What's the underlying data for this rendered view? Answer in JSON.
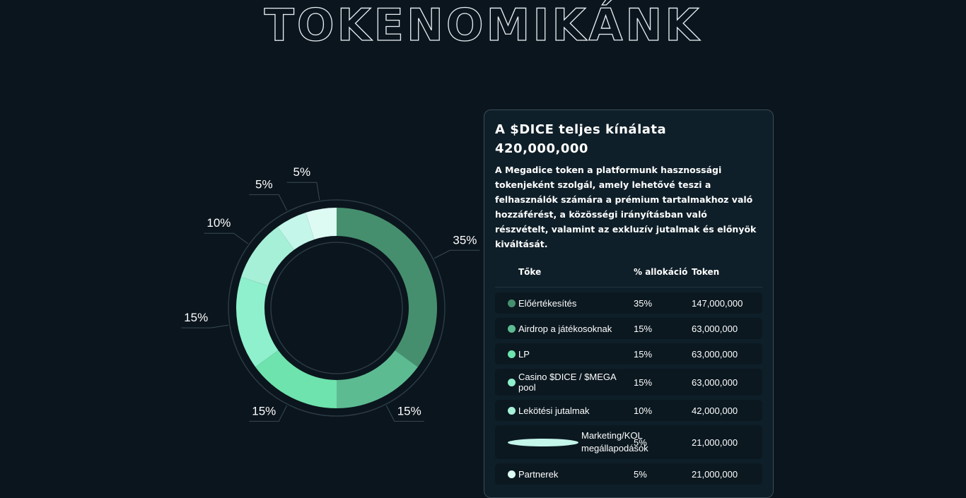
{
  "header": {
    "title": "TOKENOMIKÁNK"
  },
  "chart_data": {
    "type": "pie",
    "categories": [
      "Előértékesítés",
      "Airdrop a játékosoknak",
      "LP",
      "Casino $DICE / $MEGA pool",
      "Lekötési jutalmak",
      "Marketing/KOL megállapodások",
      "Partnerek"
    ],
    "values": [
      35,
      15,
      15,
      15,
      10,
      5,
      5
    ],
    "value_labels": [
      "35%",
      "15%",
      "15%",
      "15%",
      "10%",
      "5%",
      "5%"
    ],
    "colors": [
      "#468f6e",
      "#5dbb92",
      "#6ee3ad",
      "#8ef0cc",
      "#a6f0d8",
      "#c4f6ea",
      "#ddfaf3"
    ]
  },
  "panel": {
    "title": "A $DICE teljes kínálata",
    "supply": "420,000,000",
    "description": "A Megadice token a platformunk hasznossági tokenjeként szolgál, amely lehetővé teszi a felhasználók számára a prémium tartalmakhoz való hozzáférést, a közösségi irányításban való részvételt, valamint az exkluzív jutalmak és előnyök kiváltását.",
    "table": {
      "headers": [
        "Tőke",
        "% allokáció",
        "Token"
      ],
      "rows": [
        [
          "Előértékesítés",
          "35%",
          "147,000,000"
        ],
        [
          "Airdrop a játékosoknak",
          "15%",
          "63,000,000"
        ],
        [
          "LP",
          "15%",
          "63,000,000"
        ],
        [
          "Casino $DICE / $MEGA pool",
          "15%",
          "63,000,000"
        ],
        [
          "Lekötési jutalmak",
          "10%",
          "42,000,000"
        ],
        [
          "Marketing/KOL megállapodások",
          "5%",
          "21,000,000"
        ],
        [
          "Partnerek",
          "5%",
          "21,000,000"
        ]
      ]
    }
  }
}
